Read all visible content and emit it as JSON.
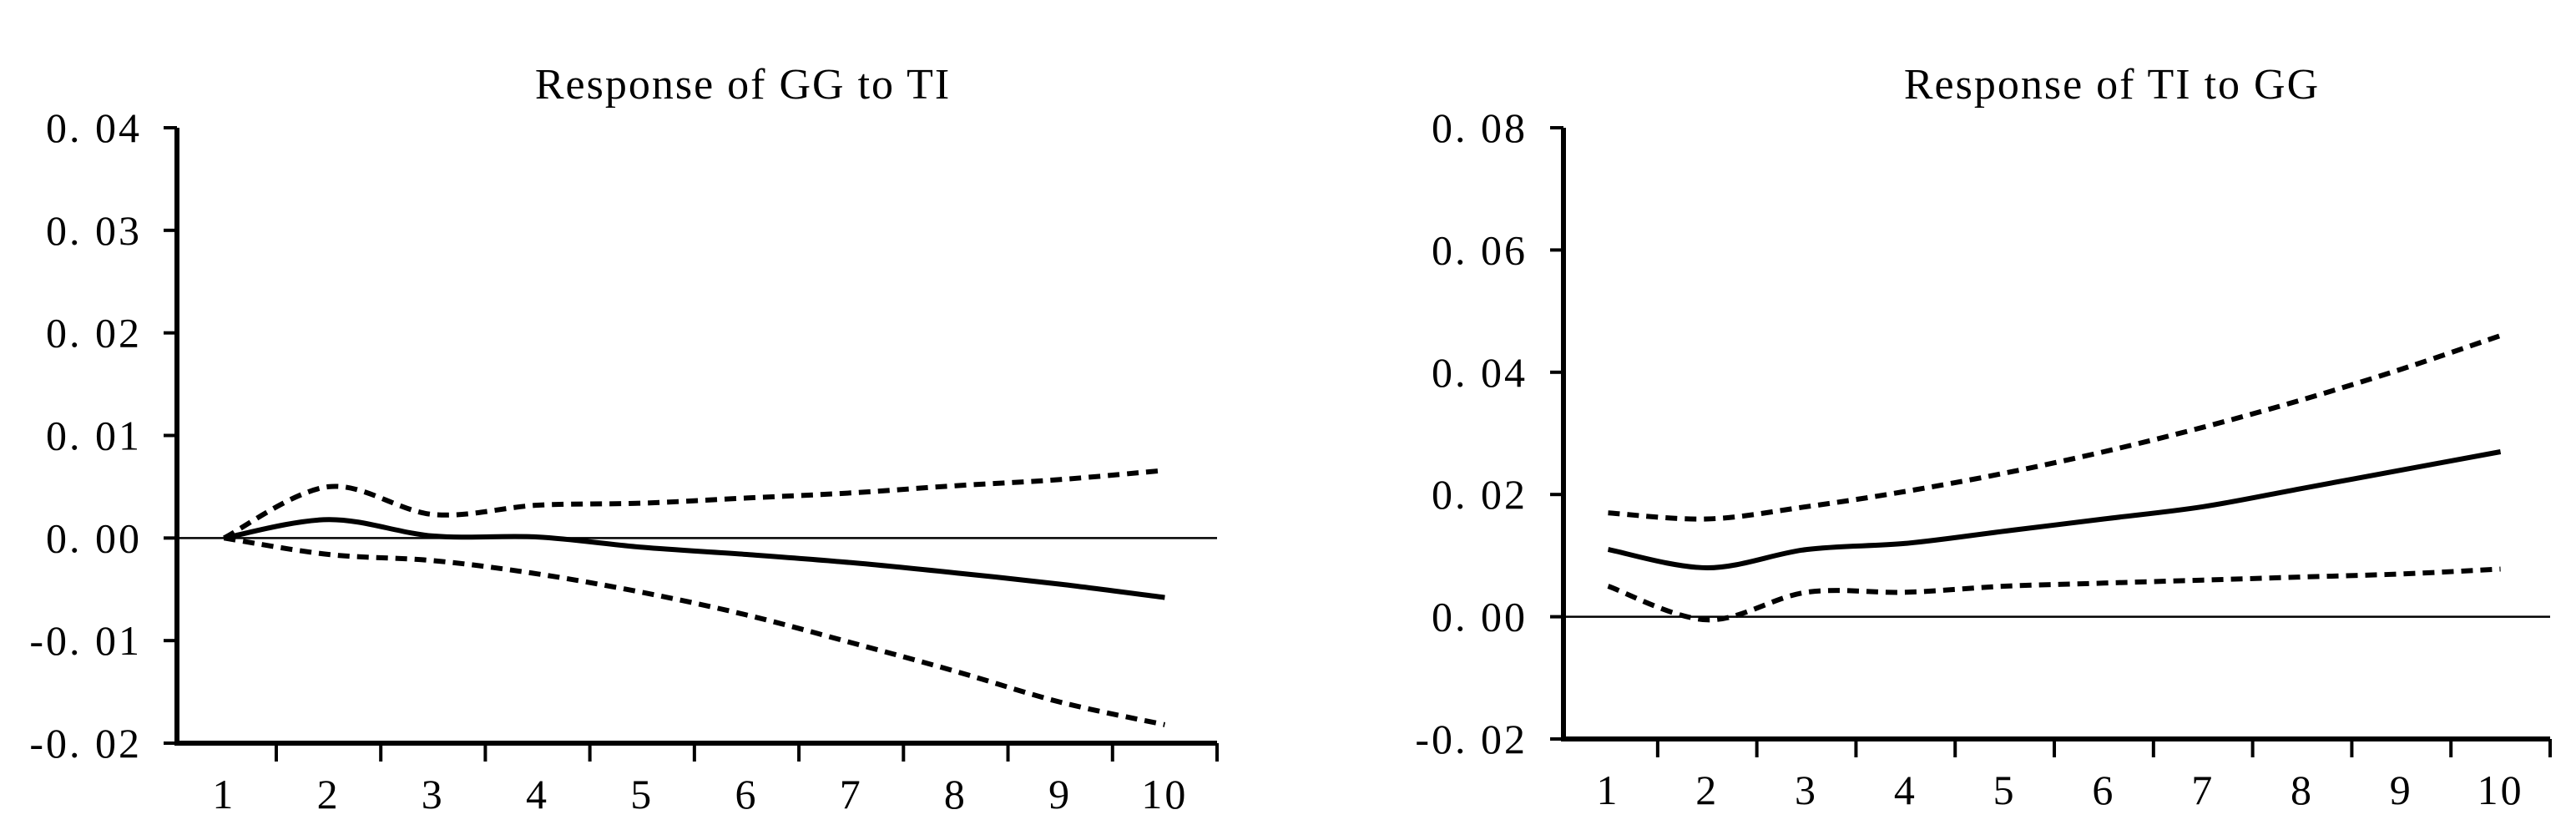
{
  "chart_data": [
    {
      "type": "line",
      "title": "Response of GG to TI",
      "xlabel": "",
      "ylabel": "",
      "x": [
        1,
        2,
        3,
        4,
        5,
        6,
        7,
        8,
        9,
        10
      ],
      "x_tick_labels": [
        "1",
        "2",
        "3",
        "4",
        "5",
        "6",
        "7",
        "8",
        "9",
        "10"
      ],
      "y_tick_labels": [
        "0. 04",
        "0. 03",
        "0. 02",
        "0. 01",
        "0. 00",
        "-0. 01",
        "-0. 02"
      ],
      "y_ticks": [
        0.04,
        0.03,
        0.02,
        0.01,
        0.0,
        -0.01,
        -0.02
      ],
      "ylim": [
        -0.02,
        0.04
      ],
      "xlim": [
        0.55,
        10.5
      ],
      "zero_line": true,
      "grid": false,
      "series": [
        {
          "style": "solid",
          "values": [
            0.0,
            0.0018,
            0.0002,
            0.0001,
            -0.0009,
            -0.0016,
            -0.0024,
            -0.0034,
            -0.0045,
            -0.0058
          ]
        },
        {
          "style": "dashed",
          "values": [
            0.0,
            0.005,
            0.0023,
            0.0032,
            0.0034,
            0.0039,
            0.0044,
            0.0051,
            0.0057,
            0.0066
          ]
        },
        {
          "style": "dashed",
          "values": [
            0.0,
            -0.0016,
            -0.0022,
            -0.0035,
            -0.0053,
            -0.0075,
            -0.0102,
            -0.013,
            -0.016,
            -0.0182
          ]
        }
      ]
    },
    {
      "type": "line",
      "title": "Response of TI to GG",
      "xlabel": "",
      "ylabel": "",
      "x": [
        1,
        2,
        3,
        4,
        5,
        6,
        7,
        8,
        9,
        10
      ],
      "x_tick_labels": [
        "1",
        "2",
        "3",
        "4",
        "5",
        "6",
        "7",
        "8",
        "9",
        "10"
      ],
      "y_tick_labels": [
        "0. 08",
        "0. 06",
        "0. 04",
        "0. 02",
        "0. 00",
        "-0. 02"
      ],
      "y_ticks": [
        0.08,
        0.06,
        0.04,
        0.02,
        0.0,
        -0.02
      ],
      "ylim": [
        -0.02,
        0.08
      ],
      "xlim": [
        0.55,
        10.5
      ],
      "zero_line": true,
      "grid": false,
      "series": [
        {
          "style": "solid",
          "values": [
            0.011,
            0.008,
            0.011,
            0.012,
            0.014,
            0.016,
            0.018,
            0.021,
            0.024,
            0.027
          ]
        },
        {
          "style": "dashed",
          "values": [
            0.017,
            0.016,
            0.018,
            0.0205,
            0.0235,
            0.027,
            0.031,
            0.0355,
            0.0405,
            0.046
          ]
        },
        {
          "style": "dashed",
          "values": [
            0.005,
            -0.0005,
            0.004,
            0.004,
            0.005,
            0.0055,
            0.006,
            0.0065,
            0.007,
            0.0078
          ]
        }
      ]
    }
  ]
}
